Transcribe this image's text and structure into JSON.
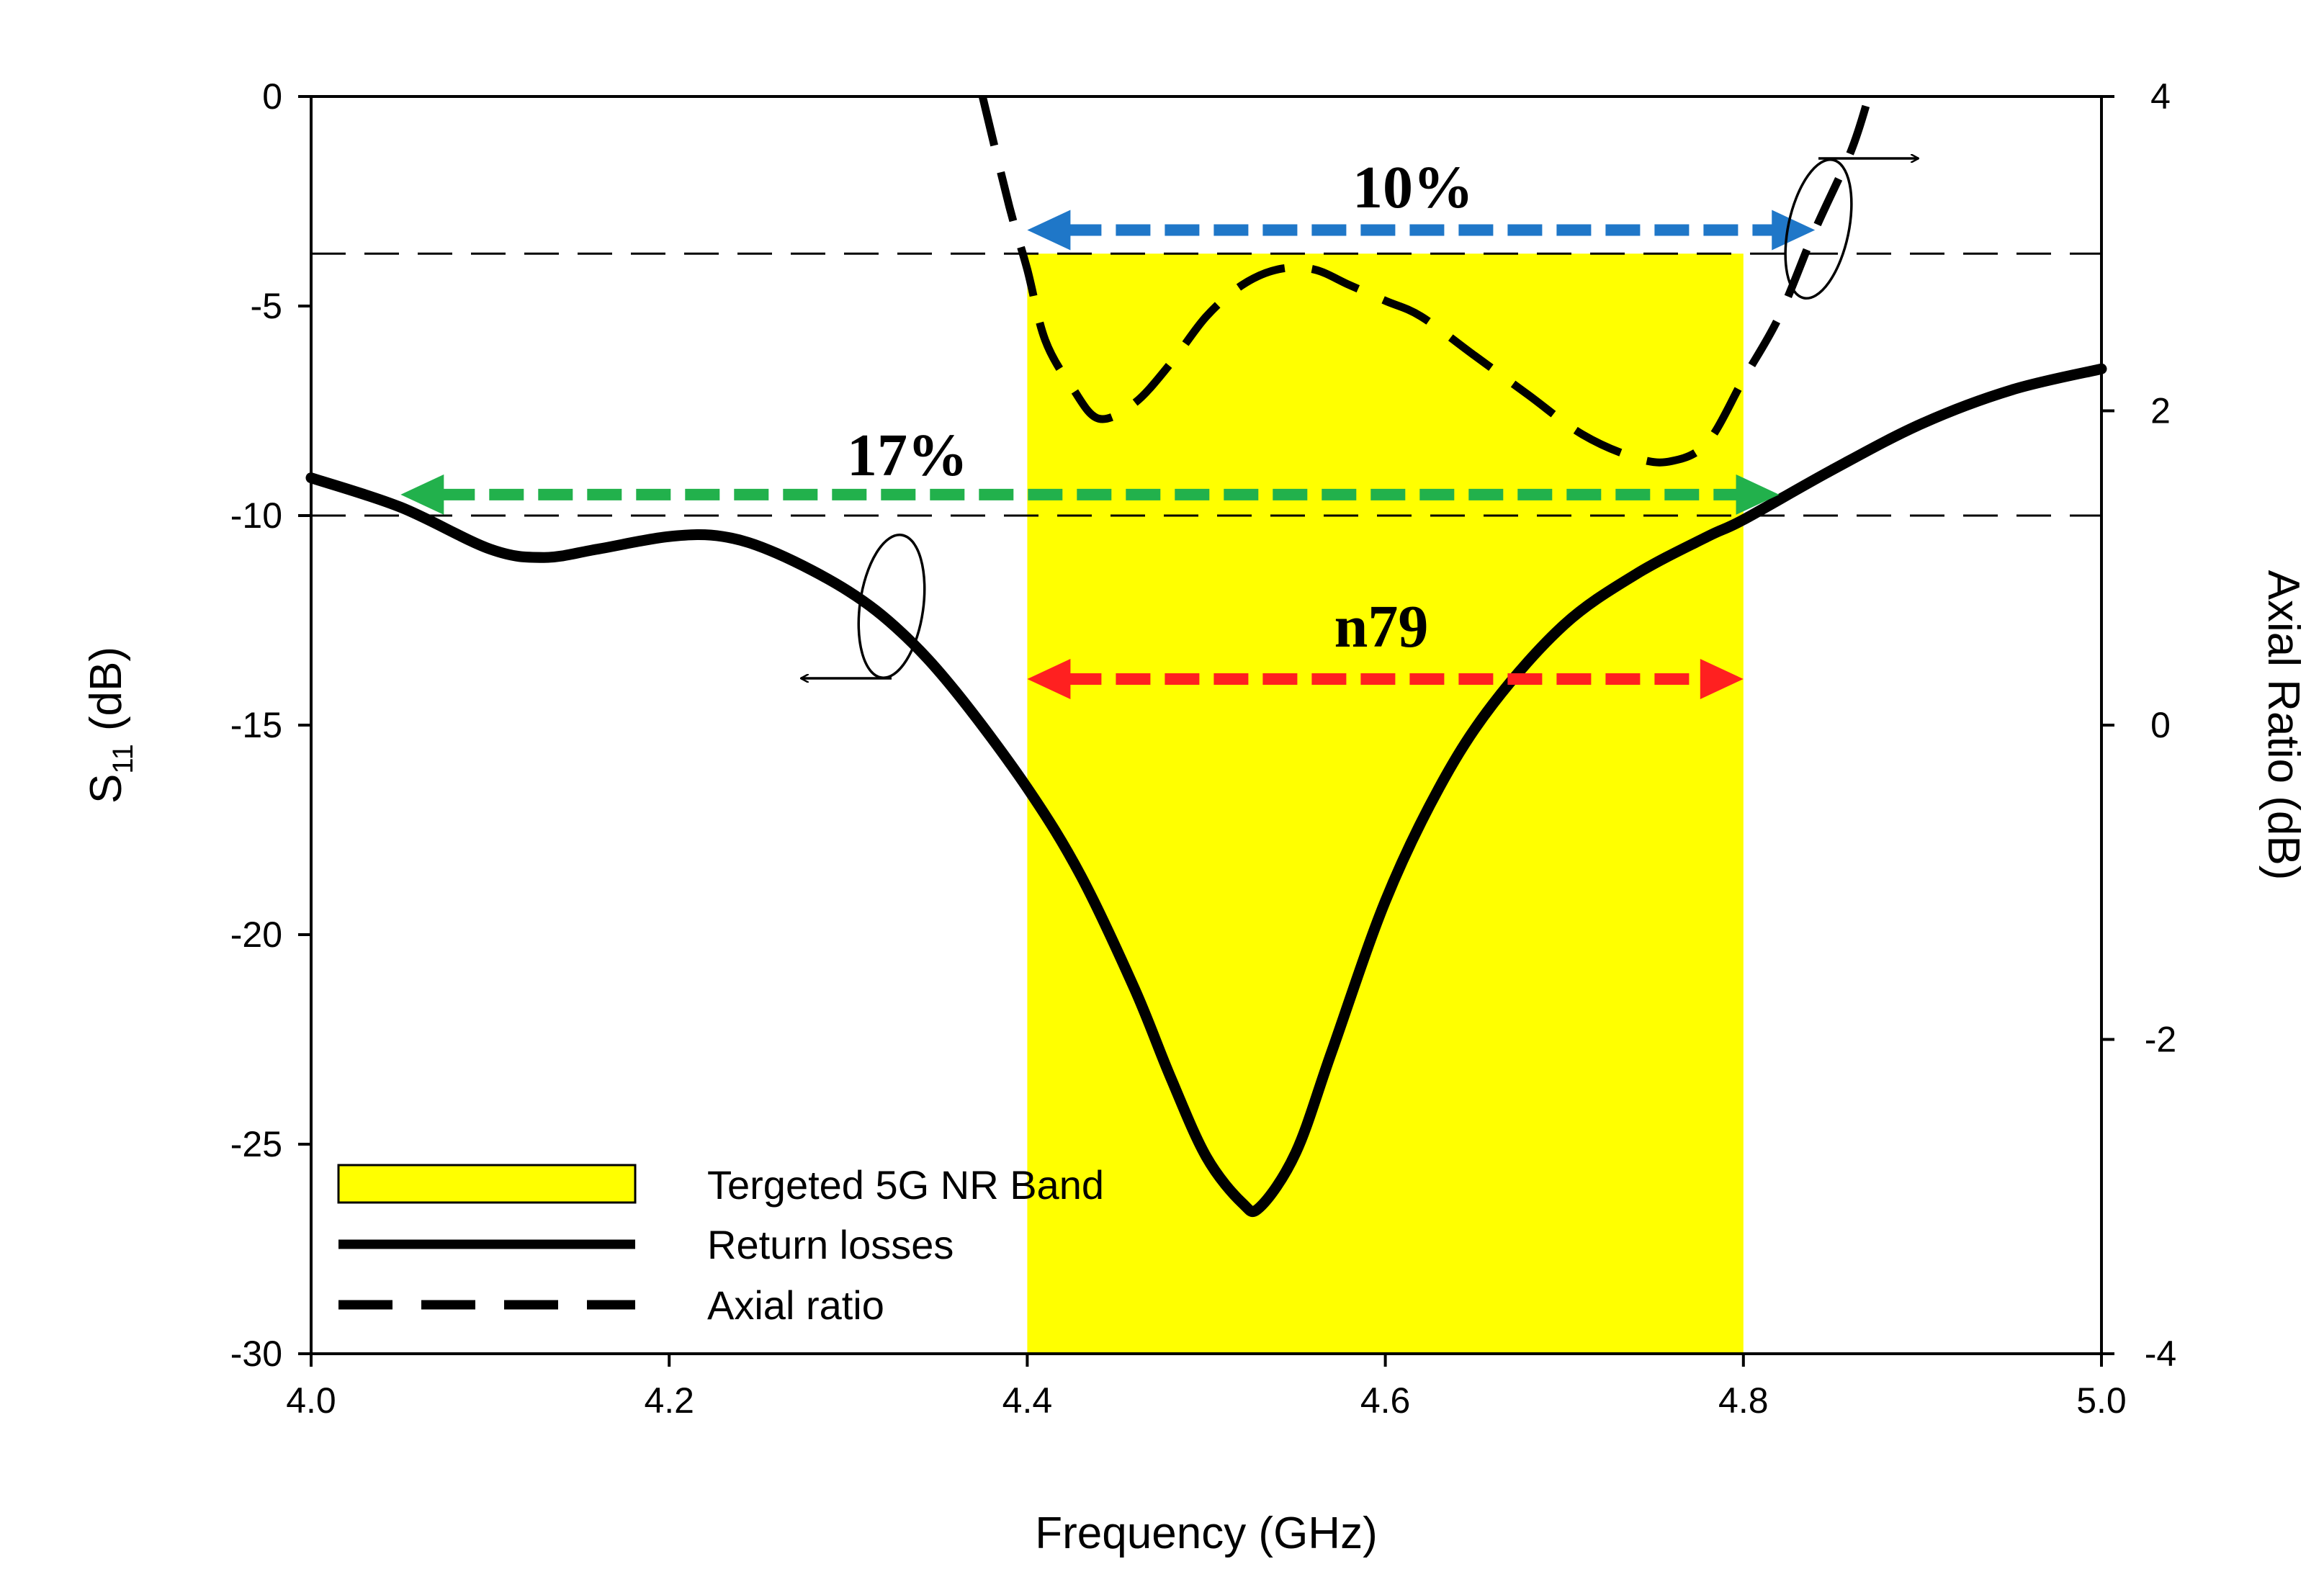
{
  "chart_data": {
    "type": "line",
    "xlabel": "Frequency (GHz)",
    "ylabel_left": "S11 (dB)",
    "ylabel_left_main": "S",
    "ylabel_left_sub": "11",
    "ylabel_left_unit": "(dB)",
    "ylabel_right": "Axial Ratio (dB)",
    "xlim": [
      4.0,
      5.0
    ],
    "ylim_left": [
      -30,
      0
    ],
    "ylim_right": [
      -4,
      4
    ],
    "x_ticks": [
      4.0,
      4.2,
      4.4,
      4.6,
      4.8,
      5.0
    ],
    "x_tick_labels": [
      "4.0",
      "4.2",
      "4.4",
      "4.6",
      "4.8",
      "5.0"
    ],
    "y_left_ticks": [
      0,
      -5,
      -10,
      -15,
      -20,
      -25,
      -30
    ],
    "y_left_tick_labels": [
      "0",
      "-5",
      "-10",
      "-15",
      "-20",
      "-25",
      "-30"
    ],
    "y_right_ticks": [
      4,
      2,
      0,
      -2,
      -4
    ],
    "y_right_tick_labels": [
      "4",
      "2",
      "0",
      "-2",
      "-4"
    ],
    "band": {
      "name": "Tergeted 5G NR Band",
      "x": [
        4.4,
        4.8
      ],
      "y_left": [
        -30,
        -3.75
      ],
      "color": "#ffff00"
    },
    "reference_lines": [
      {
        "axis": "left",
        "y": -3.75
      },
      {
        "axis": "left",
        "y": -10
      }
    ],
    "series": [
      {
        "name": "Return losses",
        "axis": "left",
        "style": "solid",
        "x": [
          4.0,
          4.05,
          4.1,
          4.13,
          4.16,
          4.2,
          4.23,
          4.26,
          4.3,
          4.33,
          4.36,
          4.4,
          4.43,
          4.46,
          4.48,
          4.5,
          4.52,
          4.53,
          4.55,
          4.57,
          4.6,
          4.63,
          4.66,
          4.7,
          4.74,
          4.78,
          4.8,
          4.85,
          4.9,
          4.95,
          5.0
        ],
        "y": [
          -9.1,
          -9.8,
          -10.8,
          -11.0,
          -10.8,
          -10.5,
          -10.5,
          -10.9,
          -11.8,
          -12.8,
          -14.2,
          -16.5,
          -18.6,
          -21.3,
          -23.4,
          -25.3,
          -26.4,
          -26.5,
          -25.2,
          -22.8,
          -19.2,
          -16.5,
          -14.5,
          -12.6,
          -11.4,
          -10.5,
          -10.1,
          -8.9,
          -7.8,
          -7.0,
          -6.5
        ]
      },
      {
        "name": "Axial ratio",
        "axis": "right",
        "style": "dashed",
        "x": [
          4.375,
          4.39,
          4.4,
          4.41,
          4.425,
          4.44,
          4.46,
          4.48,
          4.5,
          4.52,
          4.54,
          4.56,
          4.58,
          4.6,
          4.62,
          4.65,
          4.68,
          4.71,
          4.74,
          4.76,
          4.78,
          4.8,
          4.82,
          4.84,
          4.86,
          4.87
        ],
        "y": [
          4.0,
          3.3,
          2.9,
          2.45,
          2.15,
          1.95,
          2.05,
          2.3,
          2.6,
          2.8,
          2.9,
          2.9,
          2.8,
          2.7,
          2.6,
          2.35,
          2.1,
          1.85,
          1.7,
          1.68,
          1.8,
          2.2,
          2.6,
          3.15,
          3.65,
          4.0
        ]
      }
    ],
    "annotations": [
      {
        "text": "10%",
        "x_range": [
          4.4,
          4.84
        ],
        "at_right": 3.15,
        "color": "#1f77c8"
      },
      {
        "text": "17%",
        "x_range": [
          4.05,
          4.82
        ],
        "at_left": -9.5,
        "color": "#22b14c"
      },
      {
        "text": "n79",
        "x_range": [
          4.4,
          4.8
        ],
        "at_left": -13.9,
        "color": "#ff2020"
      }
    ],
    "legend": {
      "placement": "bottom-left",
      "entries": [
        "Tergeted 5G NR Band",
        "Return losses",
        "Axial ratio"
      ]
    }
  }
}
